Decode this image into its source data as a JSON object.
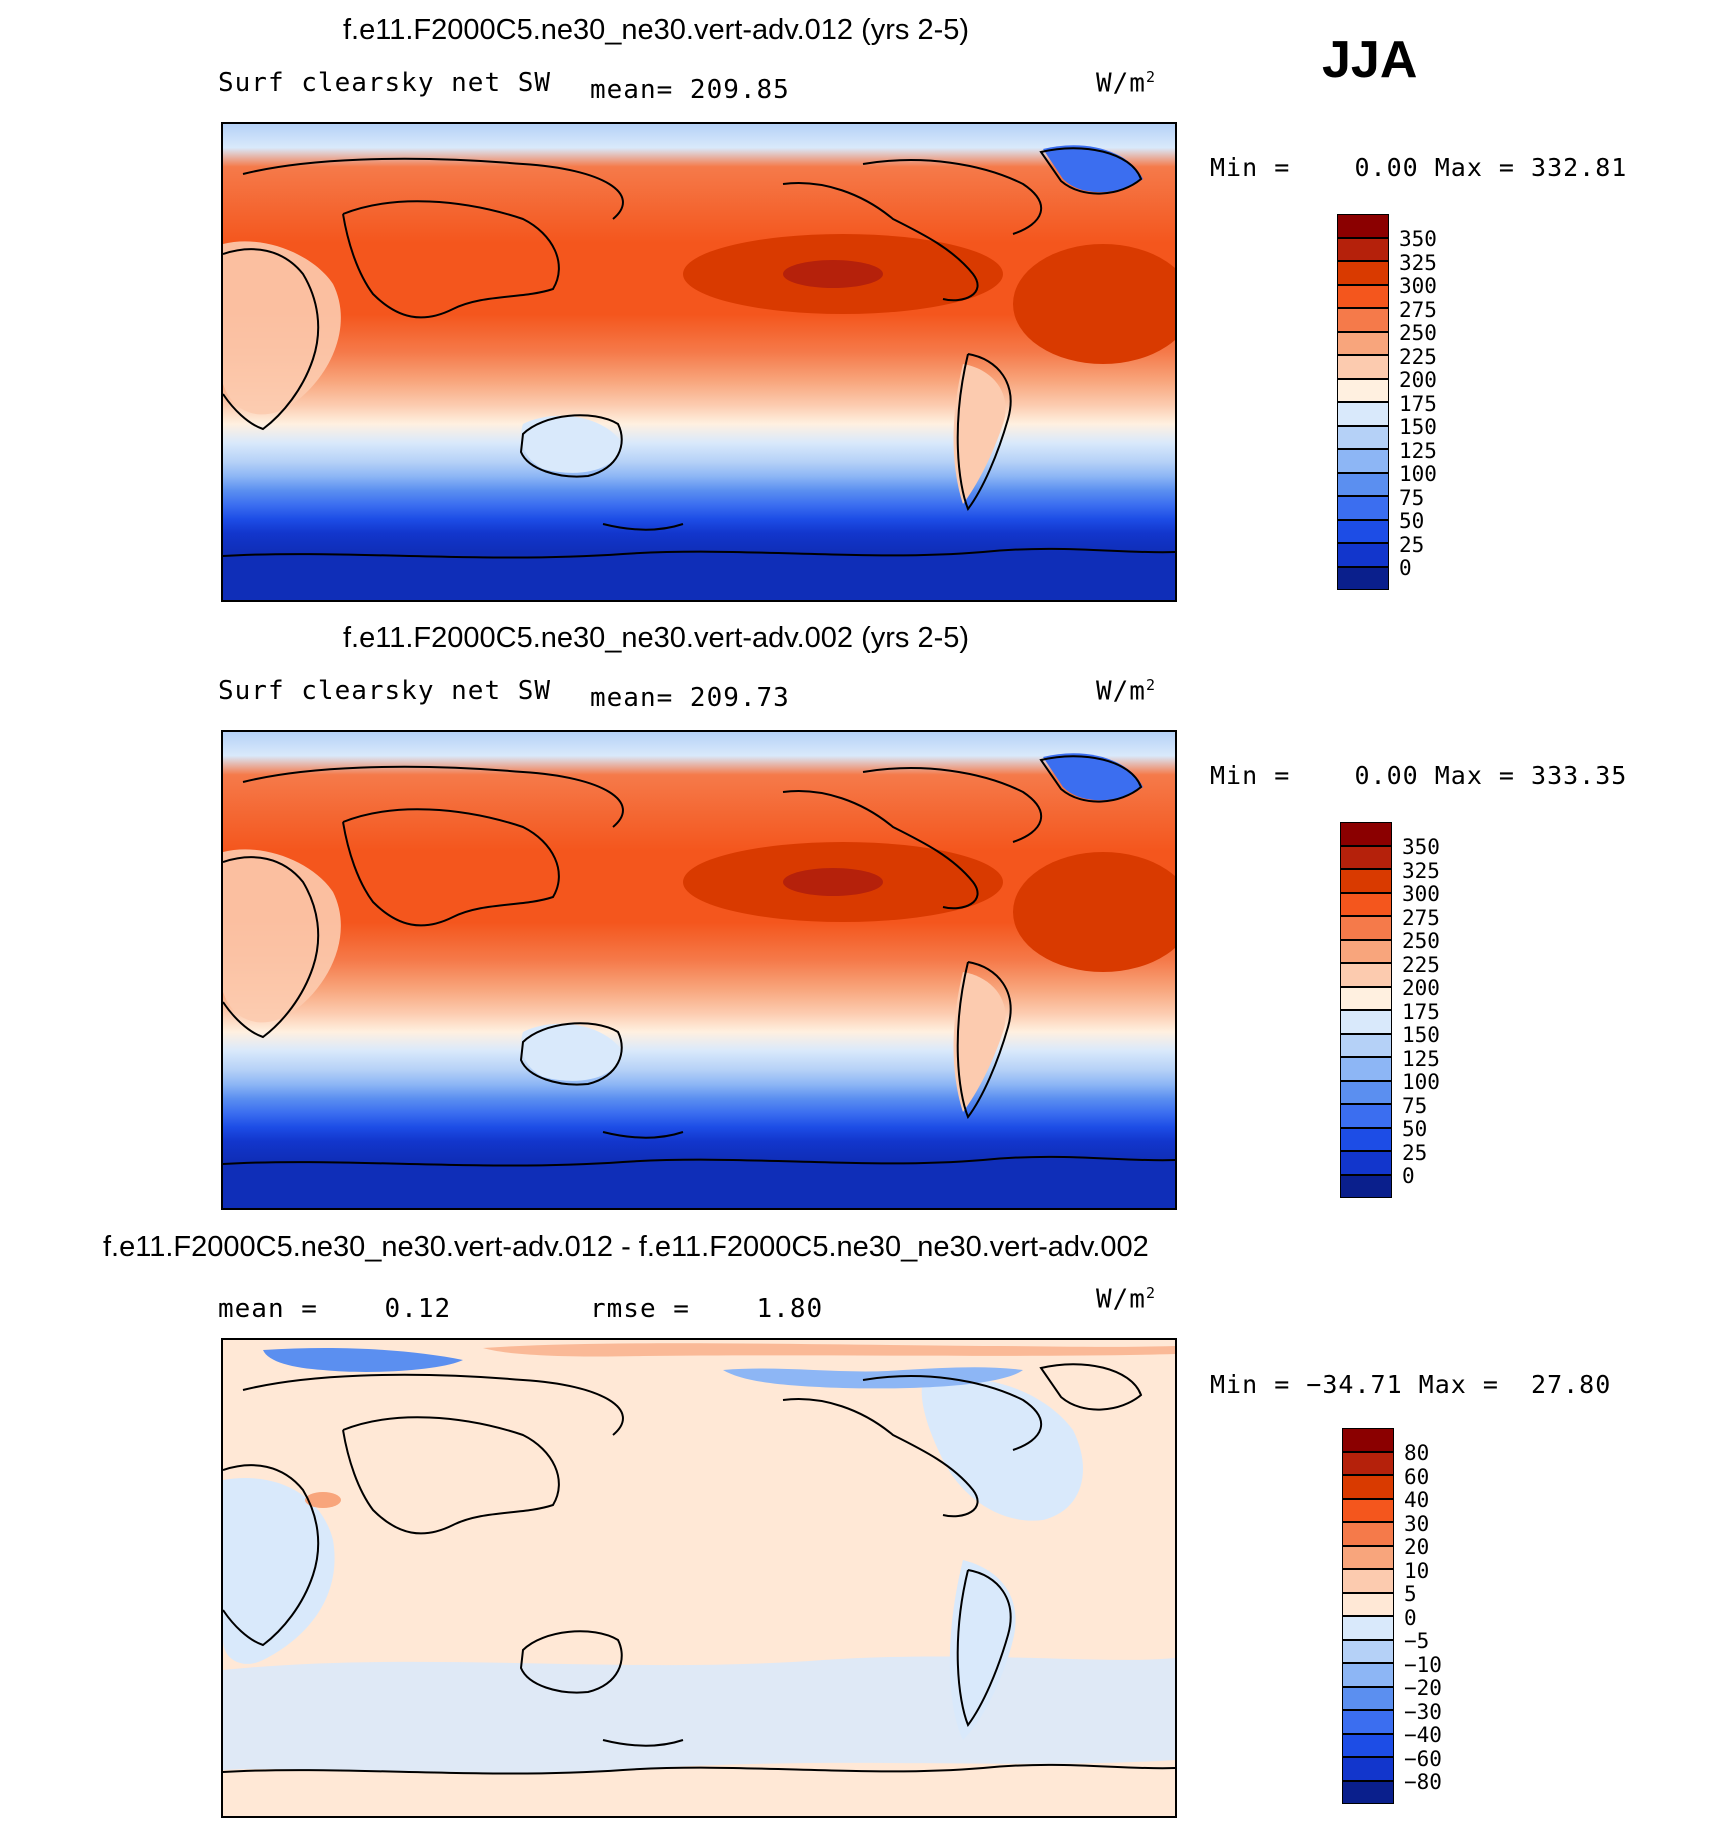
{
  "season": "JJA",
  "colors": {
    "abs_levels": [
      "#8b0000",
      "#b5210b",
      "#d93a00",
      "#f4561d",
      "#f57a4a",
      "#f8a57c",
      "#fccbaf",
      "#fff0e0",
      "#d9e9fb",
      "#b5d1f7",
      "#8db6f5",
      "#5b8ff0",
      "#3b6ef0",
      "#1d4de6",
      "#1236cc",
      "#0a1f8c"
    ],
    "diff_levels": [
      "#8b0000",
      "#b5210b",
      "#d93a00",
      "#f4561d",
      "#f57a4a",
      "#f8a57c",
      "#fccbaf",
      "#ffe8d6",
      "#d9e9fb",
      "#b5d1f7",
      "#8db6f5",
      "#5b8ff0",
      "#3b6ef0",
      "#1d4de6",
      "#1236cc",
      "#0a1f8c"
    ]
  },
  "panels": [
    {
      "title": "f.e11.F2000C5.ne30_ne30.vert-adv.012 (yrs 2-5)",
      "left_label": "Surf clearsky net SW",
      "stat_label": "mean= 209.85",
      "units": "W/m",
      "units_sup": "2",
      "minmax": "Min =    0.00 Max = 332.81",
      "colorbar_labels": [
        "350",
        "325",
        "300",
        "275",
        "250",
        "225",
        "200",
        "175",
        "150",
        "125",
        "100",
        "75",
        "50",
        "25",
        "0"
      ],
      "kind": "abs"
    },
    {
      "title": "f.e11.F2000C5.ne30_ne30.vert-adv.002 (yrs 2-5)",
      "left_label": "Surf clearsky net SW",
      "stat_label": "mean= 209.73",
      "units": "W/m",
      "units_sup": "2",
      "minmax": "Min =    0.00 Max = 333.35",
      "colorbar_labels": [
        "350",
        "325",
        "300",
        "275",
        "250",
        "225",
        "200",
        "175",
        "150",
        "125",
        "100",
        "75",
        "50",
        "25",
        "0"
      ],
      "kind": "abs"
    },
    {
      "title": "f.e11.F2000C5.ne30_ne30.vert-adv.012 - f.e11.F2000C5.ne30_ne30.vert-adv.002",
      "left_label": "mean =    0.12",
      "stat_label": "rmse =    1.80",
      "units": "W/m",
      "units_sup": "2",
      "minmax": "Min = −34.71 Max =  27.80",
      "colorbar_labels": [
        "80",
        "60",
        "40",
        "30",
        "20",
        "10",
        "5",
        "0",
        "−5",
        "−10",
        "−20",
        "−30",
        "−40",
        "−60",
        "−80"
      ],
      "kind": "diff"
    }
  ]
}
